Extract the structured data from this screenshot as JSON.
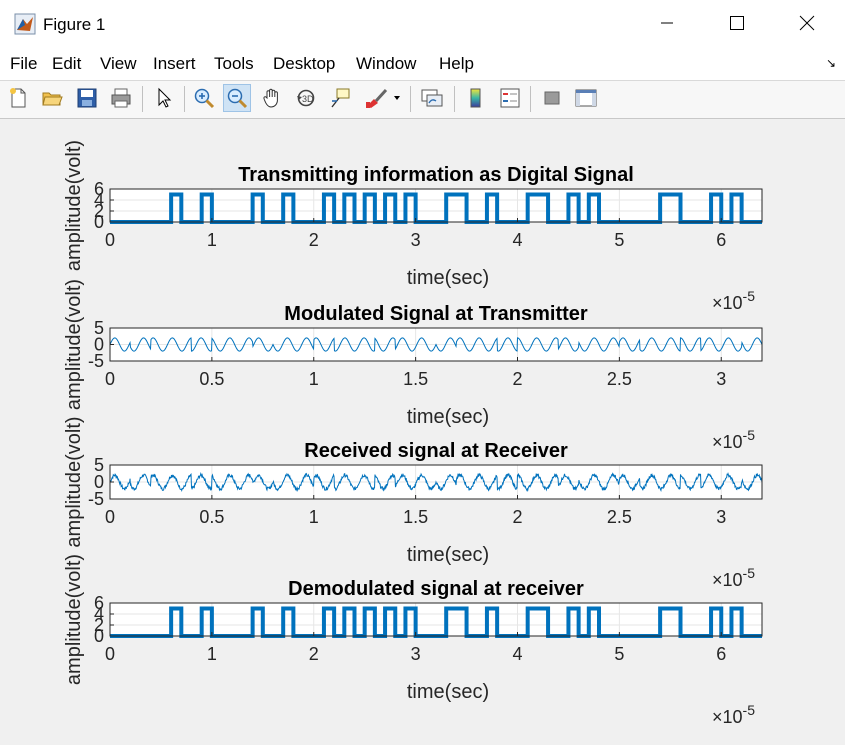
{
  "window": {
    "title": "Figure 1"
  },
  "menu": [
    "File",
    "Edit",
    "View",
    "Insert",
    "Tools",
    "Desktop",
    "Window",
    "Help"
  ],
  "toolbar_icons": [
    "new-figure-icon",
    "open-file-icon",
    "save-icon",
    "print-icon",
    "edit-plot-arrow-icon",
    "zoom-in-icon",
    "zoom-out-icon",
    "pan-hand-icon",
    "rotate-3d-icon",
    "data-cursor-icon",
    "brush-icon",
    "link-plot-icon",
    "insert-colorbar-icon",
    "insert-legend-icon",
    "hide-plot-tools-icon",
    "show-plot-tools-icon"
  ],
  "chart_data": [
    {
      "type": "line",
      "title": "Transmitting information as Digital Signal",
      "xlabel": "time(sec)",
      "ylabel": "amplitude(volt)",
      "xlim": [
        0,
        6.4e-05
      ],
      "ylim": [
        0,
        6
      ],
      "xticks": [
        "0",
        "1",
        "2",
        "3",
        "4",
        "5",
        "6"
      ],
      "yticks": [
        "0",
        "2",
        "4",
        "6"
      ],
      "x_exponent": "×10",
      "x_exponent_power": "-5",
      "grid": true,
      "color": "#0072bd",
      "bits": [
        0,
        0,
        0,
        0,
        0,
        0,
        1,
        0,
        0,
        1,
        0,
        0,
        0,
        0,
        1,
        0,
        0,
        1,
        0,
        0,
        0,
        1,
        0,
        1,
        0,
        1,
        0,
        1,
        0,
        1,
        0,
        0,
        0,
        1,
        1,
        0,
        0,
        1,
        0,
        0,
        0,
        1,
        1,
        0,
        0,
        1,
        0,
        1,
        0,
        0,
        0,
        0,
        0,
        0,
        1,
        1,
        0,
        0,
        0,
        1,
        0,
        1,
        0,
        0
      ],
      "bit_period": 1e-06,
      "amplitude_high": 5,
      "amplitude_low": 0
    },
    {
      "type": "line",
      "title": "Modulated Signal at Transmitter",
      "xlabel": "time(sec)",
      "ylabel": "amplitude(volt)",
      "xlim": [
        0,
        3.2e-05
      ],
      "ylim": [
        -5,
        5
      ],
      "xticks": [
        "0",
        "0.5",
        "1",
        "1.5",
        "2",
        "2.5",
        "3"
      ],
      "yticks": [
        "-5",
        "0",
        "5"
      ],
      "x_exponent": "×10",
      "x_exponent_power": "-5",
      "grid": true,
      "color": "#0072bd",
      "carrier_cycles": 34,
      "amplitude": 2
    },
    {
      "type": "line",
      "title": "Received signal at Receiver",
      "xlabel": "time(sec)",
      "ylabel": "amplitude(volt)",
      "xlim": [
        0,
        3.2e-05
      ],
      "ylim": [
        -5,
        5
      ],
      "xticks": [
        "0",
        "0.5",
        "1",
        "1.5",
        "2",
        "2.5",
        "3"
      ],
      "yticks": [
        "-5",
        "0",
        "5"
      ],
      "x_exponent": "×10",
      "x_exponent_power": "-5",
      "grid": true,
      "color": "#0072bd",
      "carrier_cycles": 34,
      "amplitude": 2,
      "noise": 0.5
    },
    {
      "type": "line",
      "title": "Demodulated signal at receiver",
      "xlabel": "time(sec)",
      "ylabel": "amplitude(volt)",
      "xlim": [
        0,
        6.4e-05
      ],
      "ylim": [
        0,
        6
      ],
      "xticks": [
        "0",
        "1",
        "2",
        "3",
        "4",
        "5",
        "6"
      ],
      "yticks": [
        "0",
        "2",
        "4",
        "6"
      ],
      "x_exponent": "×10",
      "x_exponent_power": "-5",
      "grid": true,
      "color": "#0072bd",
      "bits": [
        0,
        0,
        0,
        0,
        0,
        0,
        1,
        0,
        0,
        1,
        0,
        0,
        0,
        0,
        1,
        0,
        0,
        1,
        0,
        0,
        0,
        1,
        0,
        1,
        0,
        1,
        0,
        1,
        0,
        1,
        0,
        0,
        0,
        1,
        1,
        0,
        0,
        1,
        0,
        0,
        0,
        1,
        1,
        0,
        0,
        1,
        0,
        1,
        0,
        0,
        0,
        0,
        0,
        0,
        1,
        1,
        0,
        0,
        0,
        1,
        0,
        1,
        0,
        0
      ],
      "bit_period": 1e-06,
      "amplitude_high": 5,
      "amplitude_low": 0
    }
  ]
}
